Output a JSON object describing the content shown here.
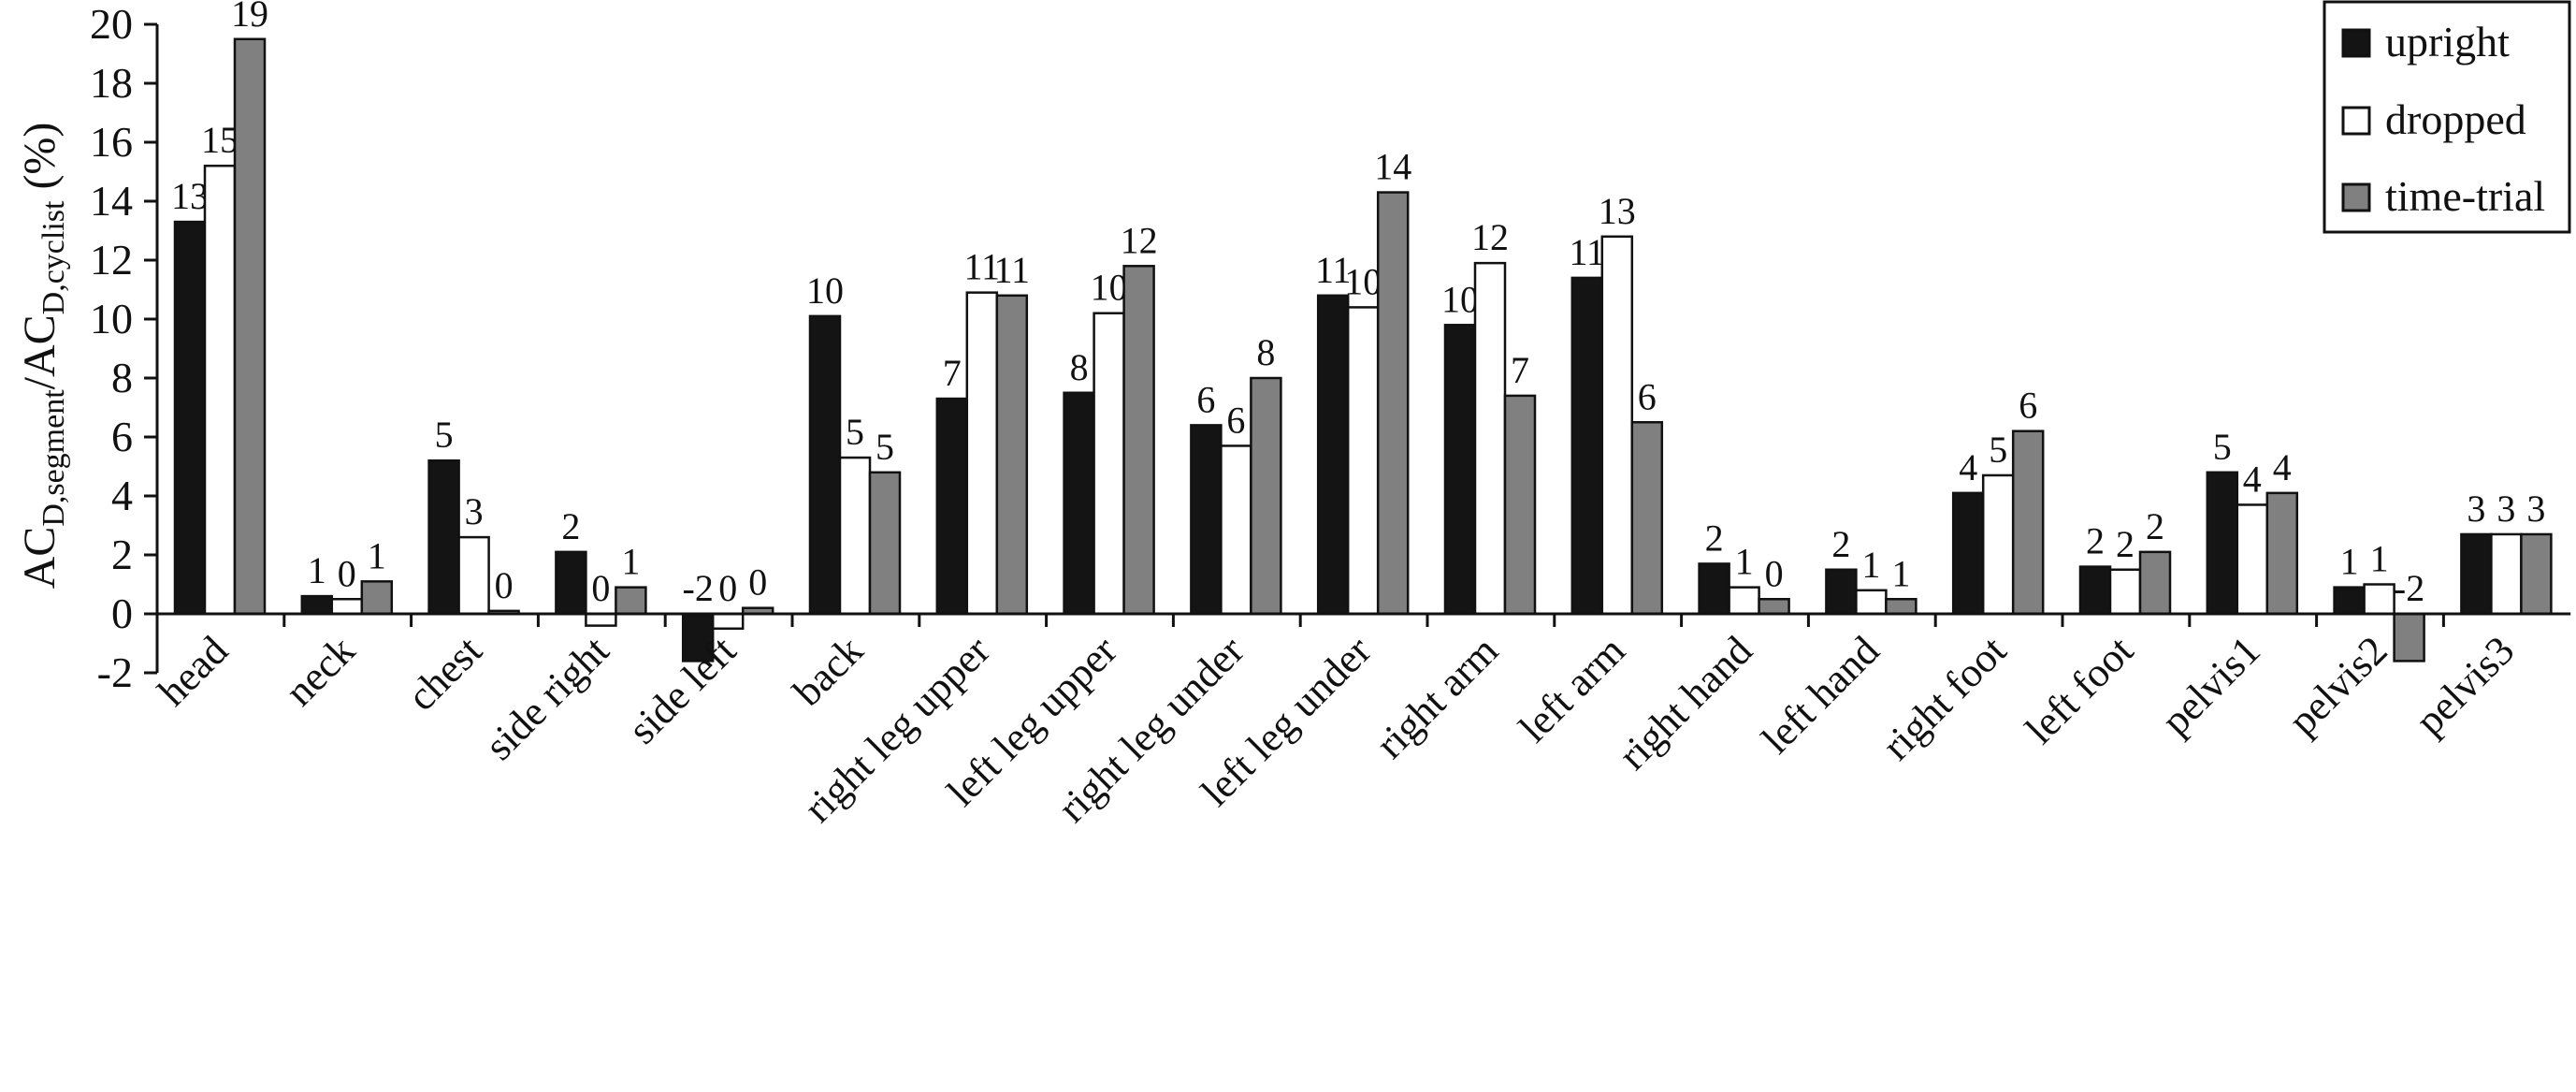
{
  "chart_data": {
    "type": "bar",
    "title": "",
    "xlabel": "",
    "ylabel_parts": {
      "a": "AC",
      "b": "D,segment",
      "c": "/AC",
      "d": "D,cyclist",
      "e": " (%)"
    },
    "ylim": [
      -2,
      20
    ],
    "yticks": [
      -2,
      0,
      2,
      4,
      6,
      8,
      10,
      12,
      14,
      16,
      18,
      20
    ],
    "grid": false,
    "legend_position": "top-right",
    "categories": [
      "head",
      "neck",
      "chest",
      "side right",
      "side left",
      "back",
      "right leg upper",
      "left leg upper",
      "right leg under",
      "left leg under",
      "right arm",
      "left arm",
      "right hand",
      "left hand",
      "right foot",
      "left foot",
      "pelvis1",
      "pelvis2",
      "pelvis3"
    ],
    "series": [
      {
        "name": "upright",
        "color": "#141414",
        "values": [
          13.3,
          0.6,
          5.2,
          2.1,
          -1.6,
          10.1,
          7.3,
          7.5,
          6.4,
          10.8,
          9.8,
          11.4,
          1.7,
          1.5,
          4.1,
          1.6,
          4.8,
          0.9,
          2.7
        ],
        "labels": [
          "13",
          "1",
          "5",
          "2",
          "-2",
          "10",
          "7",
          "8",
          "6",
          "11",
          "10",
          "11",
          "2",
          "2",
          "4",
          "2",
          "5",
          "1",
          "3"
        ]
      },
      {
        "name": "dropped",
        "color": "#ffffff",
        "values": [
          15.2,
          0.5,
          2.6,
          -0.4,
          -0.5,
          5.3,
          10.9,
          10.2,
          5.7,
          10.4,
          11.9,
          12.8,
          0.9,
          0.8,
          4.7,
          1.5,
          3.7,
          1.0,
          2.7
        ],
        "labels": [
          "15",
          "0",
          "3",
          "0",
          "0",
          "5",
          "11",
          "10",
          "6",
          "10",
          "12",
          "13",
          "1",
          "1",
          "5",
          "2",
          "4",
          "1",
          "3"
        ]
      },
      {
        "name": "time-trial",
        "color": "#808080",
        "values": [
          19.5,
          1.1,
          0.1,
          0.9,
          0.2,
          4.8,
          10.8,
          11.8,
          8.0,
          14.3,
          7.4,
          6.5,
          0.5,
          0.5,
          6.2,
          2.1,
          4.1,
          -1.6,
          2.7
        ],
        "labels": [
          "19",
          "1",
          "0",
          "1",
          "0",
          "5",
          "11",
          "12",
          "8",
          "14",
          "7",
          "6",
          "0",
          "1",
          "6",
          "2",
          "4",
          "-2",
          "3"
        ]
      }
    ]
  }
}
